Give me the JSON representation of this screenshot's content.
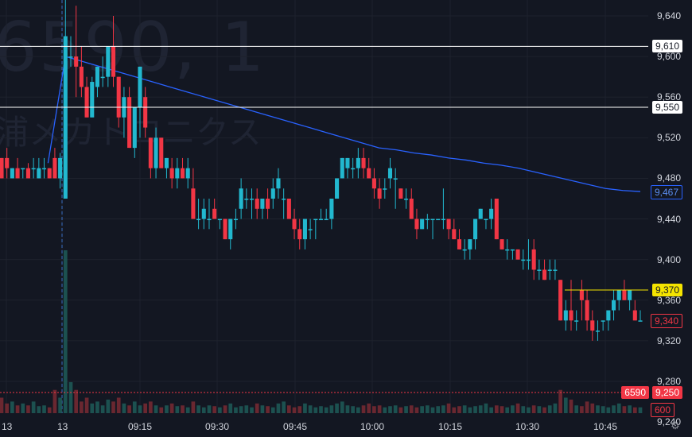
{
  "watermark": {
    "line1": "6590, 1",
    "line2": "浦メカトロニクス"
  },
  "y_axis": {
    "ticks": [
      9640,
      9600,
      9560,
      9520,
      9480,
      9440,
      9400,
      9360,
      9320,
      9280,
      9240
    ],
    "tick_labels": [
      "9,640",
      "9,600",
      "9,560",
      "9,520",
      "9,480",
      "9,440",
      "9,400",
      "9,360",
      "9,320",
      "9,280",
      "9,240"
    ]
  },
  "x_axis": {
    "labels": [
      "13",
      "13",
      "09:15",
      "09:30",
      "09:45",
      "10:00",
      "10:15",
      "10:30",
      "10:45"
    ]
  },
  "horizontal_lines": [
    {
      "value": 9610,
      "label": "9,610",
      "color": "#ffffff"
    },
    {
      "value": 9550,
      "label": "9,550",
      "color": "#ffffff"
    },
    {
      "value": 9370,
      "label": "9,370",
      "color": "#f5e400"
    }
  ],
  "price_tags": {
    "vwap": {
      "label": "9,467",
      "color": "#2962ff"
    },
    "last": {
      "label": "9,340",
      "color": "#f23645"
    },
    "symbol": {
      "label": "6590",
      "color": "#f23645"
    },
    "volume_level": {
      "label": "9,250",
      "color": "#f23645"
    },
    "volume_scale": {
      "label": "600",
      "color": "#f23645"
    }
  },
  "colors": {
    "up": "#26a69a",
    "up_bright": "#22b8cf",
    "down": "#f23645",
    "vwap": "#2962ff",
    "background": "#131722"
  },
  "chart_data": {
    "type": "candlestick",
    "symbol": "6590",
    "interval": "1",
    "ylim": [
      9240,
      9650
    ],
    "candles": [
      [
        9500,
        9500,
        9480,
        9480
      ],
      [
        9500,
        9510,
        9480,
        9490
      ],
      [
        9480,
        9490,
        9480,
        9490
      ],
      [
        9490,
        9500,
        9480,
        9480
      ],
      [
        9490,
        9490,
        9480,
        9490
      ],
      [
        9490,
        9495,
        9480,
        9480
      ],
      [
        9490,
        9500,
        9480,
        9490
      ],
      [
        9480,
        9500,
        9480,
        9490
      ],
      [
        9490,
        9500,
        9480,
        9490
      ],
      [
        9490,
        9490,
        9480,
        9480
      ],
      [
        9500,
        9510,
        9480,
        9480
      ],
      [
        9480,
        9505,
        9470,
        9500
      ],
      [
        9460,
        9660,
        9460,
        9620
      ],
      [
        9600,
        9620,
        9590,
        9600
      ],
      [
        9600,
        9650,
        9560,
        9590
      ],
      [
        9590,
        9610,
        9560,
        9570
      ],
      [
        9570,
        9580,
        9540,
        9540
      ],
      [
        9540,
        9580,
        9540,
        9575
      ],
      [
        9570,
        9590,
        9560,
        9590
      ],
      [
        9580,
        9600,
        9570,
        9580
      ],
      [
        9580,
        9610,
        9570,
        9610
      ],
      [
        9610,
        9640,
        9570,
        9580
      ],
      [
        9580,
        9580,
        9530,
        9540
      ],
      [
        9540,
        9570,
        9520,
        9560
      ],
      [
        9560,
        9570,
        9510,
        9510
      ],
      [
        9510,
        9550,
        9500,
        9550
      ],
      [
        9550,
        9590,
        9520,
        9590
      ],
      [
        9560,
        9570,
        9520,
        9530
      ],
      [
        9520,
        9520,
        9480,
        9490
      ],
      [
        9490,
        9530,
        9480,
        9520
      ],
      [
        9520,
        9520,
        9490,
        9490
      ],
      [
        9490,
        9500,
        9480,
        9500
      ],
      [
        9490,
        9500,
        9470,
        9480
      ],
      [
        9480,
        9500,
        9470,
        9490
      ],
      [
        9490,
        9500,
        9480,
        9480
      ],
      [
        9480,
        9500,
        9470,
        9490
      ],
      [
        9470,
        9490,
        9440,
        9440
      ],
      [
        9440,
        9460,
        9430,
        9440
      ],
      [
        9440,
        9460,
        9430,
        9450
      ],
      [
        9440,
        9460,
        9430,
        9440
      ],
      [
        9450,
        9460,
        9440,
        9440
      ],
      [
        9440,
        9440,
        9430,
        9440
      ],
      [
        9440,
        9440,
        9420,
        9420
      ],
      [
        9420,
        9440,
        9410,
        9440
      ],
      [
        9440,
        9450,
        9430,
        9440
      ],
      [
        9450,
        9480,
        9440,
        9470
      ],
      [
        9460,
        9470,
        9450,
        9460
      ],
      [
        9460,
        9470,
        9440,
        9460
      ],
      [
        9460,
        9470,
        9440,
        9450
      ],
      [
        9450,
        9460,
        9440,
        9460
      ],
      [
        9460,
        9470,
        9440,
        9450
      ],
      [
        9460,
        9480,
        9450,
        9470
      ],
      [
        9470,
        9490,
        9460,
        9480
      ],
      [
        9460,
        9470,
        9440,
        9460
      ],
      [
        9460,
        9460,
        9440,
        9440
      ],
      [
        9440,
        9450,
        9420,
        9430
      ],
      [
        9430,
        9440,
        9410,
        9420
      ],
      [
        9420,
        9440,
        9410,
        9440
      ],
      [
        9430,
        9440,
        9420,
        9430
      ],
      [
        9440,
        9440,
        9420,
        9440
      ],
      [
        9440,
        9450,
        9440,
        9440
      ],
      [
        9440,
        9450,
        9440,
        9440
      ],
      [
        9440,
        9460,
        9430,
        9460
      ],
      [
        9460,
        9480,
        9460,
        9480
      ],
      [
        9480,
        9500,
        9480,
        9500
      ],
      [
        9490,
        9500,
        9480,
        9500
      ],
      [
        9490,
        9500,
        9480,
        9490
      ],
      [
        9490,
        9510,
        9480,
        9500
      ],
      [
        9500,
        9510,
        9480,
        9490
      ],
      [
        9490,
        9500,
        9480,
        9480
      ],
      [
        9480,
        9490,
        9460,
        9470
      ],
      [
        9470,
        9480,
        9450,
        9460
      ],
      [
        9470,
        9480,
        9460,
        9470
      ],
      [
        9480,
        9500,
        9470,
        9490
      ],
      [
        9480,
        9490,
        9450,
        9480
      ],
      [
        9470,
        9470,
        9460,
        9460
      ],
      [
        9460,
        9470,
        9450,
        9460
      ],
      [
        9460,
        9470,
        9440,
        9440
      ],
      [
        9440,
        9450,
        9420,
        9430
      ],
      [
        9430,
        9440,
        9430,
        9440
      ],
      [
        9440,
        9445,
        9430,
        9440
      ],
      [
        9440,
        9440,
        9420,
        9440
      ],
      [
        9440,
        9440,
        9440,
        9440
      ],
      [
        9440,
        9470,
        9430,
        9440
      ],
      [
        9440,
        9440,
        9420,
        9430
      ],
      [
        9430,
        9440,
        9420,
        9420
      ],
      [
        9420,
        9430,
        9410,
        9410
      ],
      [
        9410,
        9420,
        9400,
        9410
      ],
      [
        9410,
        9420,
        9400,
        9420
      ],
      [
        9420,
        9440,
        9410,
        9440
      ],
      [
        9440,
        9450,
        9440,
        9450
      ],
      [
        9440,
        9440,
        9430,
        9440
      ],
      [
        9440,
        9460,
        9430,
        9450
      ],
      [
        9460,
        9460,
        9420,
        9420
      ],
      [
        9420,
        9420,
        9410,
        9410
      ],
      [
        9410,
        9420,
        9400,
        9410
      ],
      [
        9410,
        9410,
        9400,
        9410
      ],
      [
        9410,
        9410,
        9400,
        9400
      ],
      [
        9400,
        9410,
        9390,
        9400
      ],
      [
        9400,
        9420,
        9390,
        9400
      ],
      [
        9410,
        9420,
        9380,
        9390
      ],
      [
        9390,
        9400,
        9380,
        9390
      ],
      [
        9390,
        9400,
        9380,
        9380
      ],
      [
        9390,
        9400,
        9380,
        9390
      ],
      [
        9390,
        9400,
        9380,
        9390
      ],
      [
        9380,
        9380,
        9340,
        9340
      ],
      [
        9340,
        9360,
        9330,
        9350
      ],
      [
        9350,
        9380,
        9330,
        9340
      ],
      [
        9340,
        9350,
        9330,
        9340
      ],
      [
        9370,
        9380,
        9340,
        9360
      ],
      [
        9360,
        9370,
        9330,
        9340
      ],
      [
        9340,
        9350,
        9320,
        9330
      ],
      [
        9330,
        9340,
        9320,
        9330
      ],
      [
        9340,
        9340,
        9330,
        9340
      ],
      [
        9340,
        9350,
        9330,
        9350
      ],
      [
        9350,
        9370,
        9340,
        9360
      ],
      [
        9360,
        9370,
        9350,
        9370
      ],
      [
        9370,
        9380,
        9360,
        9360
      ],
      [
        9360,
        9370,
        9350,
        9370
      ],
      [
        9350,
        9360,
        9340,
        9340
      ],
      [
        9340,
        9350,
        9340,
        9340
      ]
    ],
    "vwap": [
      9490,
      9495,
      9600,
      9595,
      9590,
      9585,
      9580,
      9575,
      9570,
      9565,
      9560,
      9555,
      9550,
      9545,
      9540,
      9535,
      9530,
      9525,
      9520,
      9515,
      9510,
      9508,
      9505,
      9503,
      9500,
      9498,
      9495,
      9493,
      9490,
      9486,
      9482,
      9478,
      9474,
      9470,
      9468,
      9467
    ],
    "volume": [
      40,
      25,
      30,
      20,
      25,
      20,
      30,
      18,
      20,
      15,
      60,
      40,
      420,
      80,
      60,
      30,
      40,
      25,
      30,
      20,
      35,
      30,
      40,
      25,
      20,
      30,
      20,
      25,
      30,
      20,
      15,
      20,
      25,
      18,
      20,
      15,
      30,
      20,
      15,
      20,
      18,
      15,
      20,
      25,
      15,
      18,
      20,
      15,
      25,
      20,
      18,
      15,
      25,
      30,
      20,
      15,
      18,
      25,
      20,
      15,
      18,
      15,
      20,
      25,
      30,
      20,
      18,
      15,
      20,
      25,
      18,
      20,
      15,
      18,
      20,
      15,
      18,
      20,
      15,
      18,
      20,
      15,
      18,
      20,
      25,
      15,
      18,
      20,
      15,
      18,
      20,
      25,
      15,
      20,
      18,
      15,
      20,
      25,
      18,
      15,
      20,
      18,
      15,
      20,
      25,
      60,
      40,
      35,
      20,
      18,
      30,
      25,
      20,
      18,
      15,
      20,
      25,
      18,
      20,
      15
    ]
  }
}
